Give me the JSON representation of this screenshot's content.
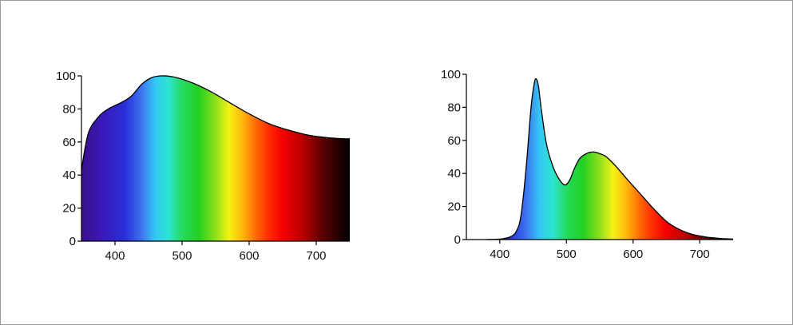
{
  "chart_data": [
    {
      "type": "area",
      "title": "",
      "xlabel": "",
      "ylabel": "",
      "xlim": [
        350,
        750
      ],
      "ylim": [
        0,
        100
      ],
      "xticks": [
        400,
        500,
        600,
        700
      ],
      "yticks": [
        0,
        20,
        40,
        60,
        80,
        100
      ],
      "grid": false,
      "fill": "visible-spectrum gradient by wavelength",
      "series": [
        {
          "x": [
            350,
            360,
            375,
            390,
            410,
            425,
            440,
            455,
            470,
            485,
            500,
            520,
            545,
            570,
            600,
            630,
            660,
            690,
            720,
            740,
            750
          ],
          "values": [
            43,
            65,
            75,
            80,
            84,
            88,
            95,
            99,
            100,
            99.5,
            98,
            95,
            90,
            84,
            77,
            71,
            67,
            64,
            62.5,
            62,
            62
          ]
        }
      ]
    },
    {
      "type": "area",
      "title": "",
      "xlabel": "",
      "ylabel": "",
      "xlim": [
        350,
        750
      ],
      "ylim": [
        0,
        100
      ],
      "xticks": [
        400,
        500,
        600,
        700
      ],
      "yticks": [
        0,
        20,
        40,
        60,
        80,
        100
      ],
      "grid": false,
      "fill": "visible-spectrum gradient by wavelength",
      "series": [
        {
          "x": [
            380,
            400,
            415,
            425,
            432,
            440,
            447,
            452,
            455,
            458,
            462,
            470,
            480,
            490,
            498,
            505,
            512,
            520,
            530,
            540,
            550,
            560,
            575,
            590,
            610,
            630,
            650,
            670,
            690,
            710,
            730,
            750
          ],
          "values": [
            0,
            0.3,
            1.5,
            5,
            15,
            45,
            80,
            95,
            97,
            93,
            80,
            58,
            44,
            36,
            33,
            36,
            43,
            49,
            52,
            53,
            52,
            50,
            44,
            37,
            28,
            19,
            11,
            6,
            3,
            1.5,
            0.7,
            0.3
          ]
        }
      ]
    }
  ]
}
